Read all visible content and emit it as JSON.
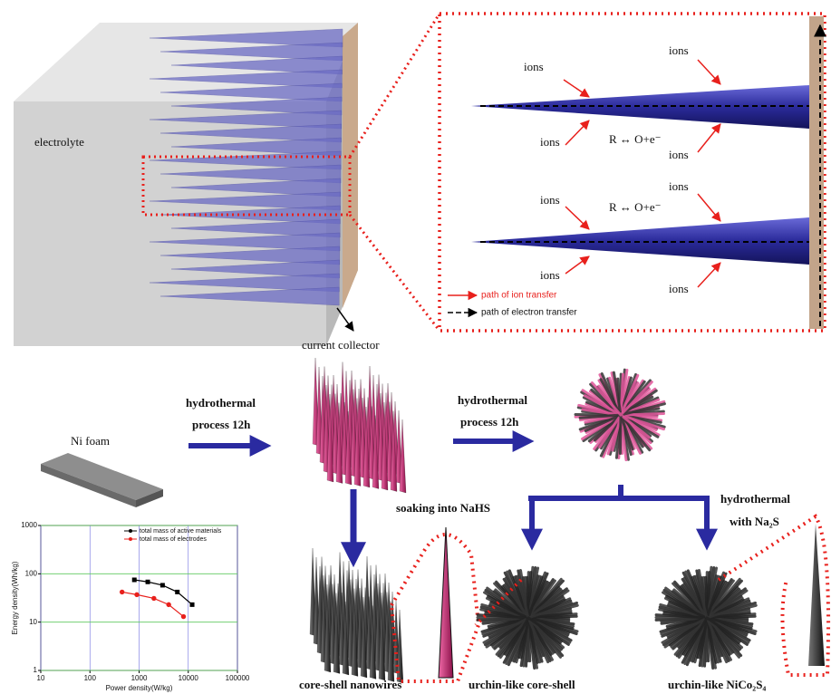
{
  "top": {
    "electrolyte": "electrolyte",
    "current_collector": "current collector",
    "ion_labels": [
      "ions",
      "ions",
      "ions",
      "ions",
      "ions",
      "ions",
      "ions",
      "ions"
    ],
    "equations": [
      "R ↔ O+e⁻",
      "R ↔ O+e⁻"
    ],
    "legend_ion": "path of ion transfer",
    "legend_electron": "path of electron transfer"
  },
  "bottom": {
    "ni_foam": "Ni foam",
    "step1": [
      "hydrothermal",
      "process 12h"
    ],
    "step2": [
      "hydrothermal",
      "process 12h"
    ],
    "soaking": "soaking into NaHS",
    "step3": [
      "hydrothermal",
      "with Na₂S"
    ],
    "product1": "core-shell nanowires",
    "product2": "urchin-like core-shell",
    "product3": "urchin-like NiCo₂S₄"
  },
  "chart_data": {
    "type": "line",
    "x_label": "Power density(W/kg)",
    "y_label": "Energy density(Wh/kg)",
    "log_x": true,
    "log_y": true,
    "grid": true,
    "legend": "upper right",
    "xlim": [
      10,
      100000
    ],
    "ylim": [
      1,
      1000
    ],
    "xticks": [
      10,
      100,
      1000,
      10000,
      100000
    ],
    "yticks": [
      1,
      10,
      100,
      1000
    ],
    "series": [
      {
        "name": "total mass of active materials",
        "color": "#000000",
        "x": [
          800,
          1500,
          3000,
          6000,
          12000
        ],
        "values": [
          75,
          68,
          58,
          42,
          23
        ]
      },
      {
        "name": "total mass of electrodes",
        "color": "#e8201c",
        "x": [
          450,
          900,
          2000,
          4000,
          8000
        ],
        "values": [
          42,
          37,
          31,
          23,
          13
        ]
      }
    ]
  }
}
